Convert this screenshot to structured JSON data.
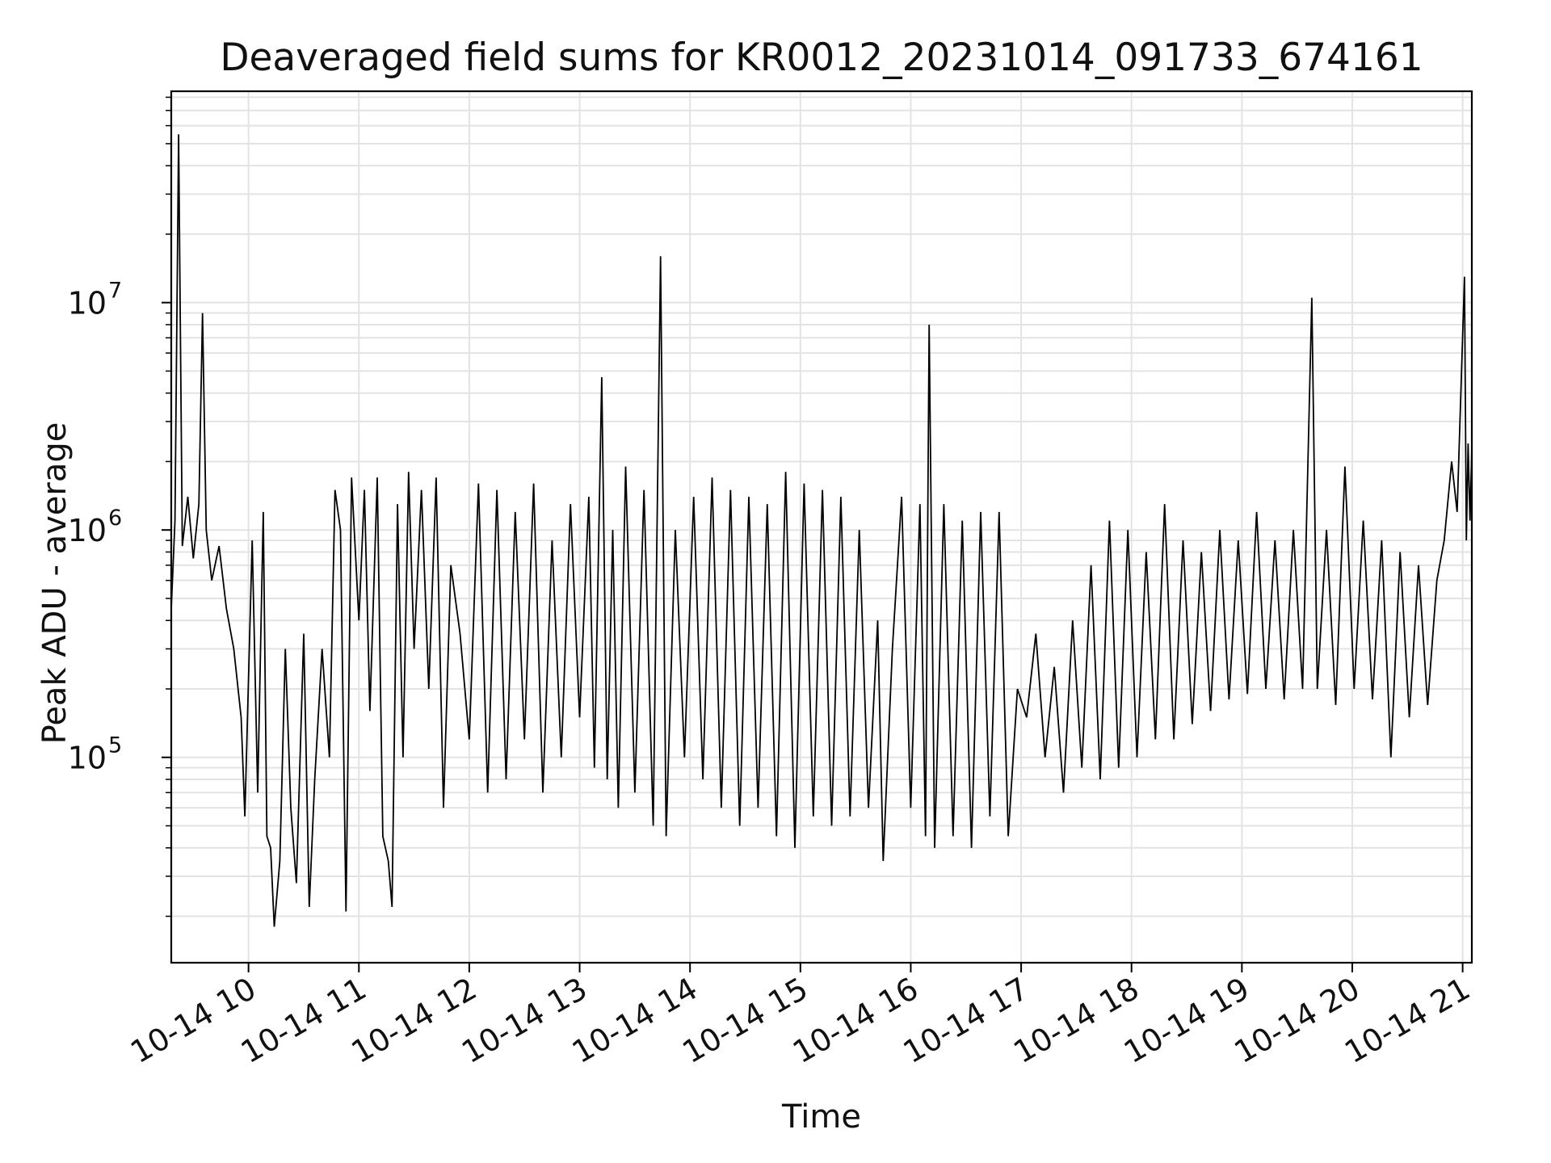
{
  "chart_data": {
    "type": "line",
    "title": "Deaveraged field sums for KR0012_20231014_091733_674161",
    "xlabel": "Time",
    "ylabel": "Peak ADU - average",
    "x_axis": {
      "type": "datetime",
      "range": [
        "2023-10-14 09:18",
        "2023-10-14 21:05"
      ],
      "tick_values": [
        "2023-10-14 10:00",
        "2023-10-14 11:00",
        "2023-10-14 12:00",
        "2023-10-14 13:00",
        "2023-10-14 14:00",
        "2023-10-14 15:00",
        "2023-10-14 16:00",
        "2023-10-14 17:00",
        "2023-10-14 18:00",
        "2023-10-14 19:00",
        "2023-10-14 20:00",
        "2023-10-14 21:00"
      ],
      "tick_labels": [
        "10-14 10",
        "10-14 11",
        "10-14 12",
        "10-14 13",
        "10-14 14",
        "10-14 15",
        "10-14 16",
        "10-14 17",
        "10-14 18",
        "10-14 19",
        "10-14 20",
        "10-14 21"
      ]
    },
    "y_axis": {
      "scale": "log",
      "range": [
        12500,
        85000000
      ],
      "ticks": [
        {
          "value": 100000,
          "base": "10",
          "exp": "5"
        },
        {
          "value": 1000000,
          "base": "10",
          "exp": "6"
        },
        {
          "value": 10000000,
          "base": "10",
          "exp": "7"
        }
      ]
    },
    "grid": true,
    "line_color": "#000000",
    "series": [
      {
        "name": "",
        "points": [
          [
            "09:18",
            450000
          ],
          [
            "09:20",
            1100000
          ],
          [
            "09:22",
            55000000
          ],
          [
            "09:24",
            850000
          ],
          [
            "09:27",
            1400000
          ],
          [
            "09:30",
            750000
          ],
          [
            "09:33",
            1300000
          ],
          [
            "09:35",
            9000000
          ],
          [
            "09:37",
            1000000
          ],
          [
            "09:40",
            600000
          ],
          [
            "09:44",
            850000
          ],
          [
            "09:48",
            450000
          ],
          [
            "09:52",
            300000
          ],
          [
            "09:56",
            150000
          ],
          [
            "09:58",
            55000
          ],
          [
            "10:02",
            900000
          ],
          [
            "10:05",
            70000
          ],
          [
            "10:08",
            1200000
          ],
          [
            "10:10",
            45000
          ],
          [
            "10:12",
            40000
          ],
          [
            "10:14",
            18000
          ],
          [
            "10:17",
            35000
          ],
          [
            "10:20",
            300000
          ],
          [
            "10:23",
            60000
          ],
          [
            "10:26",
            28000
          ],
          [
            "10:30",
            350000
          ],
          [
            "10:33",
            22000
          ],
          [
            "10:36",
            80000
          ],
          [
            "10:40",
            300000
          ],
          [
            "10:44",
            100000
          ],
          [
            "10:47",
            1500000
          ],
          [
            "10:50",
            1000000
          ],
          [
            "10:53",
            21000
          ],
          [
            "10:56",
            1700000
          ],
          [
            "11:00",
            400000
          ],
          [
            "11:03",
            1500000
          ],
          [
            "11:06",
            160000
          ],
          [
            "11:10",
            1700000
          ],
          [
            "11:13",
            45000
          ],
          [
            "11:16",
            35000
          ],
          [
            "11:18",
            22000
          ],
          [
            "11:21",
            1300000
          ],
          [
            "11:24",
            100000
          ],
          [
            "11:27",
            1800000
          ],
          [
            "11:30",
            300000
          ],
          [
            "11:34",
            1500000
          ],
          [
            "11:38",
            200000
          ],
          [
            "11:42",
            1700000
          ],
          [
            "11:46",
            60000
          ],
          [
            "11:50",
            700000
          ],
          [
            "11:55",
            350000
          ],
          [
            "12:00",
            120000
          ],
          [
            "12:05",
            1600000
          ],
          [
            "12:10",
            70000
          ],
          [
            "12:15",
            1500000
          ],
          [
            "12:20",
            80000
          ],
          [
            "12:25",
            1200000
          ],
          [
            "12:30",
            120000
          ],
          [
            "12:35",
            1600000
          ],
          [
            "12:40",
            70000
          ],
          [
            "12:45",
            900000
          ],
          [
            "12:50",
            100000
          ],
          [
            "12:55",
            1300000
          ],
          [
            "13:00",
            150000
          ],
          [
            "13:05",
            1400000
          ],
          [
            "13:08",
            90000
          ],
          [
            "13:12",
            4700000
          ],
          [
            "13:15",
            80000
          ],
          [
            "13:18",
            1000000
          ],
          [
            "13:21",
            60000
          ],
          [
            "13:25",
            1900000
          ],
          [
            "13:30",
            70000
          ],
          [
            "13:35",
            1500000
          ],
          [
            "13:40",
            50000
          ],
          [
            "13:44",
            16000000
          ],
          [
            "13:47",
            45000
          ],
          [
            "13:52",
            1000000
          ],
          [
            "13:57",
            100000
          ],
          [
            "14:02",
            1400000
          ],
          [
            "14:07",
            80000
          ],
          [
            "14:12",
            1700000
          ],
          [
            "14:17",
            60000
          ],
          [
            "14:22",
            1500000
          ],
          [
            "14:27",
            50000
          ],
          [
            "14:32",
            1400000
          ],
          [
            "14:37",
            60000
          ],
          [
            "14:42",
            1300000
          ],
          [
            "14:47",
            45000
          ],
          [
            "14:52",
            1800000
          ],
          [
            "14:57",
            40000
          ],
          [
            "15:02",
            1600000
          ],
          [
            "15:07",
            55000
          ],
          [
            "15:12",
            1500000
          ],
          [
            "15:17",
            50000
          ],
          [
            "15:22",
            1400000
          ],
          [
            "15:27",
            55000
          ],
          [
            "15:32",
            1000000
          ],
          [
            "15:37",
            60000
          ],
          [
            "15:42",
            400000
          ],
          [
            "15:45",
            35000
          ],
          [
            "15:50",
            300000
          ],
          [
            "15:55",
            1400000
          ],
          [
            "16:00",
            60000
          ],
          [
            "16:05",
            1300000
          ],
          [
            "16:08",
            45000
          ],
          [
            "16:10",
            8000000
          ],
          [
            "16:13",
            40000
          ],
          [
            "16:18",
            1300000
          ],
          [
            "16:23",
            45000
          ],
          [
            "16:28",
            1100000
          ],
          [
            "16:33",
            40000
          ],
          [
            "16:38",
            1200000
          ],
          [
            "16:43",
            55000
          ],
          [
            "16:48",
            1200000
          ],
          [
            "16:53",
            45000
          ],
          [
            "16:58",
            200000
          ],
          [
            "17:03",
            150000
          ],
          [
            "17:08",
            350000
          ],
          [
            "17:13",
            100000
          ],
          [
            "17:18",
            250000
          ],
          [
            "17:23",
            70000
          ],
          [
            "17:28",
            400000
          ],
          [
            "17:33",
            90000
          ],
          [
            "17:38",
            700000
          ],
          [
            "17:43",
            80000
          ],
          [
            "17:48",
            1100000
          ],
          [
            "17:53",
            90000
          ],
          [
            "17:58",
            1000000
          ],
          [
            "18:03",
            100000
          ],
          [
            "18:08",
            800000
          ],
          [
            "18:13",
            120000
          ],
          [
            "18:18",
            1300000
          ],
          [
            "18:23",
            120000
          ],
          [
            "18:28",
            900000
          ],
          [
            "18:33",
            140000
          ],
          [
            "18:38",
            800000
          ],
          [
            "18:43",
            160000
          ],
          [
            "18:48",
            1000000
          ],
          [
            "18:53",
            180000
          ],
          [
            "18:58",
            900000
          ],
          [
            "19:03",
            190000
          ],
          [
            "19:08",
            1200000
          ],
          [
            "19:13",
            200000
          ],
          [
            "19:18",
            900000
          ],
          [
            "19:23",
            180000
          ],
          [
            "19:28",
            1000000
          ],
          [
            "19:33",
            200000
          ],
          [
            "19:38",
            10500000
          ],
          [
            "19:41",
            200000
          ],
          [
            "19:46",
            1000000
          ],
          [
            "19:51",
            170000
          ],
          [
            "19:56",
            1900000
          ],
          [
            "20:01",
            200000
          ],
          [
            "20:06",
            1100000
          ],
          [
            "20:11",
            180000
          ],
          [
            "20:16",
            900000
          ],
          [
            "20:21",
            100000
          ],
          [
            "20:26",
            800000
          ],
          [
            "20:31",
            150000
          ],
          [
            "20:36",
            700000
          ],
          [
            "20:41",
            170000
          ],
          [
            "20:46",
            600000
          ],
          [
            "20:50",
            900000
          ],
          [
            "20:54",
            2000000
          ],
          [
            "20:57",
            1200000
          ],
          [
            "21:01",
            13000000
          ],
          [
            "21:02",
            900000
          ],
          [
            "21:03",
            2400000
          ],
          [
            "21:04",
            1100000
          ],
          [
            "21:05",
            2300000
          ]
        ]
      }
    ]
  }
}
